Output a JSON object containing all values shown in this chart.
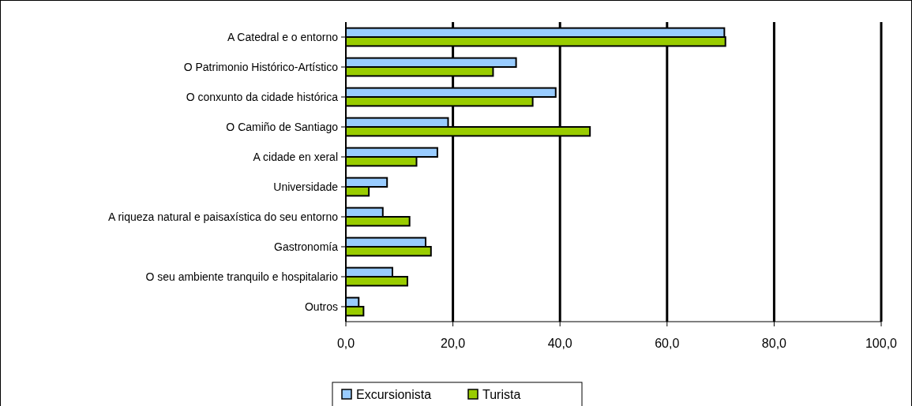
{
  "chart_data": {
    "type": "bar",
    "orientation": "horizontal",
    "categories": [
      "A Catedral e o entorno",
      "O Patrimonio Histórico-Artístico",
      "O conxunto da cidade histórica",
      "O Camiño de Santiago",
      "A cidade en xeral",
      "Universidade",
      "A riqueza natural e paisaxística do seu entorno",
      "Gastronomía",
      "O seu ambiente tranquilo e hospitalario",
      "Outros"
    ],
    "series": [
      {
        "name": "Excursionista",
        "color": "#99ccff",
        "values": [
          70.7,
          31.8,
          39.2,
          19.1,
          17.1,
          7.7,
          6.9,
          14.9,
          8.7,
          2.4
        ]
      },
      {
        "name": "Turista",
        "color": "#99cc00",
        "values": [
          70.9,
          27.5,
          34.9,
          45.6,
          13.2,
          4.3,
          11.9,
          15.9,
          11.5,
          3.3
        ]
      }
    ],
    "xlim": [
      0,
      100
    ],
    "xticks": [
      {
        "value": 0,
        "label": "0,0"
      },
      {
        "value": 20,
        "label": "20,0"
      },
      {
        "value": 40,
        "label": "40,0"
      },
      {
        "value": 60,
        "label": "60,0"
      },
      {
        "value": 80,
        "label": "80,0"
      },
      {
        "value": 100,
        "label": "100,0"
      }
    ],
    "grid": "x",
    "legend": "bottom"
  }
}
